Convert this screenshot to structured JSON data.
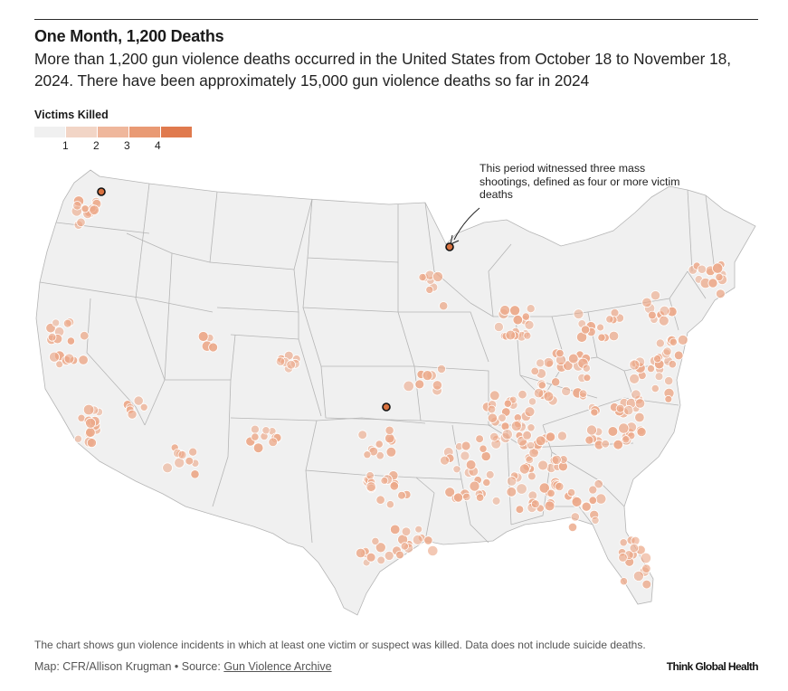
{
  "header": {
    "title": "One Month, 1,200 Deaths",
    "subtitle": "More than 1,200 gun violence deaths occurred in the United States from October 18 to November 18, 2024. There have been approximately 15,000 gun violence deaths so far in 2024"
  },
  "legend": {
    "title": "Victims Killed",
    "ticks": [
      "1",
      "2",
      "3",
      "4"
    ],
    "colors": [
      "#f0f0f0",
      "#f2d5c6",
      "#efb79c",
      "#e99a74",
      "#e07a4e"
    ]
  },
  "annotation": {
    "text": "This period witnessed three mass shootings, defined as four or more victim deaths"
  },
  "colors": {
    "land": "#f0f0f0",
    "borders": "#b5b5b5",
    "dot_fill": "#eca98a",
    "dot_stroke": "#ffffff",
    "mass_fill": "#d97240",
    "mass_ring": "#111111"
  },
  "footer": {
    "note": "The chart shows gun violence incidents in which at least one victim or suspect was killed. Data does not include suicide deaths.",
    "credit_prefix": "Map: CFR/Allison Krugman • Source: ",
    "source_label": "Gun Violence Archive",
    "brand": "Think Global Health"
  }
}
